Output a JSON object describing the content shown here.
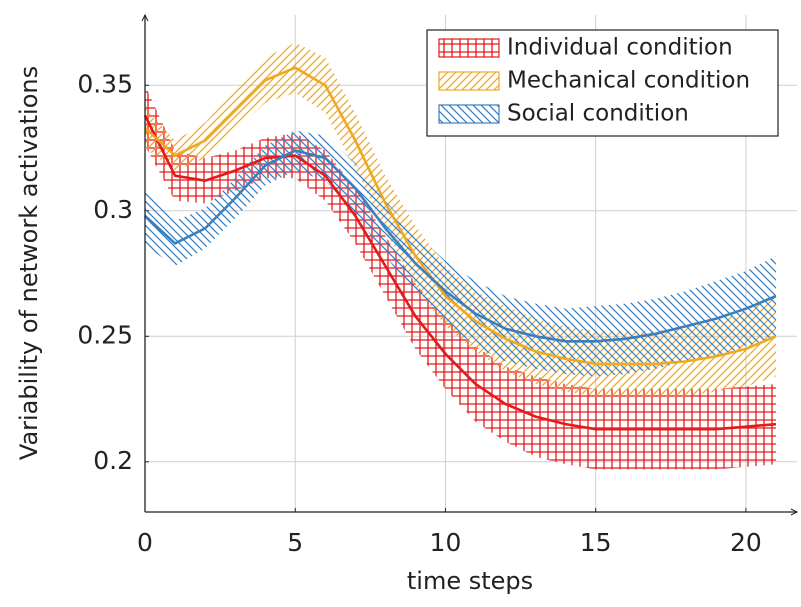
{
  "chart_data": {
    "type": "line",
    "xlabel": "time steps",
    "ylabel": "Variability of network activations",
    "x": [
      0,
      1,
      2,
      3,
      4,
      5,
      6,
      7,
      8,
      9,
      10,
      11,
      12,
      13,
      14,
      15,
      16,
      17,
      18,
      19,
      20,
      21
    ],
    "xlim": [
      0,
      21.7
    ],
    "ylim": [
      0.18,
      0.378
    ],
    "xticks": [
      0,
      5,
      10,
      15,
      20
    ],
    "yticks": [
      0.2,
      0.25,
      0.3,
      0.35
    ],
    "grid": true,
    "legend": "upper right",
    "series": [
      {
        "name": "Individual condition",
        "color": "#e41a1c",
        "hatch": "grid",
        "values": [
          0.338,
          0.314,
          0.312,
          0.316,
          0.321,
          0.322,
          0.314,
          0.298,
          0.278,
          0.258,
          0.243,
          0.231,
          0.223,
          0.218,
          0.215,
          0.213,
          0.213,
          0.213,
          0.213,
          0.213,
          0.214,
          0.215
        ],
        "errors": [
          0.012,
          0.01,
          0.009,
          0.008,
          0.008,
          0.009,
          0.01,
          0.011,
          0.012,
          0.013,
          0.014,
          0.015,
          0.015,
          0.016,
          0.016,
          0.016,
          0.016,
          0.016,
          0.016,
          0.016,
          0.016,
          0.016
        ]
      },
      {
        "name": "Mechanical condition",
        "color": "#f0a820",
        "hatch": "north east lines",
        "values": [
          0.333,
          0.322,
          0.328,
          0.34,
          0.352,
          0.357,
          0.35,
          0.328,
          0.303,
          0.282,
          0.266,
          0.256,
          0.249,
          0.244,
          0.241,
          0.239,
          0.239,
          0.239,
          0.24,
          0.242,
          0.245,
          0.25
        ],
        "errors": [
          0.008,
          0.006,
          0.007,
          0.008,
          0.009,
          0.01,
          0.011,
          0.011,
          0.011,
          0.012,
          0.012,
          0.012,
          0.013,
          0.013,
          0.013,
          0.013,
          0.013,
          0.013,
          0.014,
          0.014,
          0.015,
          0.016
        ]
      },
      {
        "name": "Social condition",
        "color": "#3a7fc0",
        "hatch": "north west lines",
        "values": [
          0.298,
          0.287,
          0.293,
          0.305,
          0.318,
          0.324,
          0.321,
          0.309,
          0.293,
          0.279,
          0.268,
          0.259,
          0.253,
          0.25,
          0.248,
          0.248,
          0.249,
          0.251,
          0.254,
          0.257,
          0.261,
          0.266
        ],
        "errors": [
          0.012,
          0.009,
          0.008,
          0.008,
          0.008,
          0.008,
          0.009,
          0.01,
          0.011,
          0.012,
          0.012,
          0.013,
          0.013,
          0.013,
          0.013,
          0.014,
          0.014,
          0.014,
          0.014,
          0.015,
          0.015,
          0.016
        ]
      }
    ]
  }
}
